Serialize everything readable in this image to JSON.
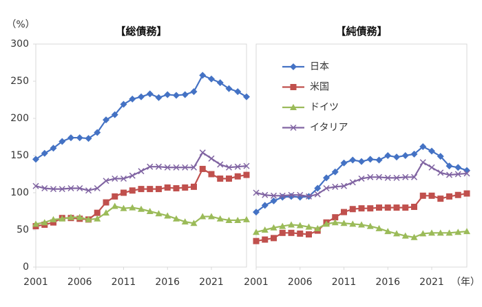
{
  "chart_data": [
    {
      "type": "line",
      "title": "【総債務】",
      "y_label": "（%）",
      "x": [
        2001,
        2002,
        2003,
        2004,
        2005,
        2006,
        2007,
        2008,
        2009,
        2010,
        2011,
        2012,
        2013,
        2014,
        2015,
        2016,
        2017,
        2018,
        2019,
        2020,
        2021,
        2022,
        2023,
        2024,
        2025
      ],
      "xlim": [
        2001,
        2025
      ],
      "xticks": [
        2001,
        2006,
        2011,
        2016,
        2021
      ],
      "ylim": [
        0,
        300
      ],
      "yticks": [
        0,
        50,
        100,
        150,
        200,
        250,
        300
      ],
      "series": [
        {
          "color": "#4472c4",
          "marker": "diamond",
          "values": [
            145,
            153,
            160,
            169,
            174,
            174,
            173,
            181,
            198,
            205,
            219,
            226,
            229,
            233,
            228,
            232,
            231,
            232,
            236,
            258,
            253,
            248,
            240,
            236,
            229
          ]
        },
        {
          "color": "#c0504d",
          "marker": "square",
          "values": [
            55,
            57,
            60,
            66,
            66,
            65,
            64,
            73,
            87,
            95,
            100,
            103,
            105,
            105,
            105,
            107,
            106,
            107,
            108,
            132,
            125,
            119,
            119,
            122,
            124
          ]
        },
        {
          "color": "#9bbb59",
          "marker": "triangle",
          "values": [
            58,
            60,
            64,
            65,
            67,
            67,
            64,
            65,
            73,
            82,
            79,
            80,
            78,
            75,
            72,
            69,
            65,
            61,
            59,
            68,
            68,
            65,
            63,
            63,
            64
          ]
        },
        {
          "color": "#8064a2",
          "marker": "cross",
          "values": [
            109,
            106,
            105,
            105,
            106,
            106,
            103,
            106,
            116,
            119,
            119,
            123,
            129,
            135,
            135,
            134,
            134,
            134,
            134,
            154,
            146,
            138,
            134,
            135,
            136
          ]
        }
      ]
    },
    {
      "type": "line",
      "title": "【純債務】",
      "x_label": "（年）",
      "x": [
        2001,
        2002,
        2003,
        2004,
        2005,
        2006,
        2007,
        2008,
        2009,
        2010,
        2011,
        2012,
        2013,
        2014,
        2015,
        2016,
        2017,
        2018,
        2019,
        2020,
        2021,
        2022,
        2023,
        2024,
        2025
      ],
      "xlim": [
        2001,
        2025
      ],
      "xticks": [
        2001,
        2006,
        2011,
        2016,
        2021
      ],
      "ylim": [
        0,
        300
      ],
      "legend": "upper-left",
      "series": [
        {
          "name": "日本",
          "color": "#4472c4",
          "marker": "diamond",
          "values": [
            74,
            83,
            89,
            94,
            95,
            94,
            95,
            106,
            120,
            128,
            140,
            144,
            142,
            145,
            144,
            150,
            148,
            150,
            152,
            162,
            156,
            149,
            136,
            134,
            130
          ]
        },
        {
          "name": "米国",
          "color": "#c0504d",
          "marker": "square",
          "values": [
            35,
            37,
            39,
            46,
            46,
            45,
            44,
            49,
            60,
            67,
            74,
            78,
            79,
            79,
            80,
            80,
            80,
            80,
            81,
            96,
            96,
            92,
            95,
            97,
            99
          ]
        },
        {
          "name": "ドイツ",
          "color": "#9bbb59",
          "marker": "triangle",
          "values": [
            47,
            50,
            53,
            55,
            57,
            56,
            54,
            52,
            58,
            60,
            59,
            58,
            57,
            55,
            52,
            48,
            45,
            42,
            40,
            45,
            46,
            46,
            46,
            47,
            48
          ]
        },
        {
          "name": "イタリア",
          "color": "#8064a2",
          "marker": "cross",
          "values": [
            100,
            97,
            96,
            96,
            97,
            97,
            95,
            98,
            106,
            108,
            109,
            114,
            119,
            121,
            121,
            120,
            120,
            121,
            121,
            141,
            134,
            127,
            124,
            125,
            126
          ]
        }
      ]
    }
  ]
}
